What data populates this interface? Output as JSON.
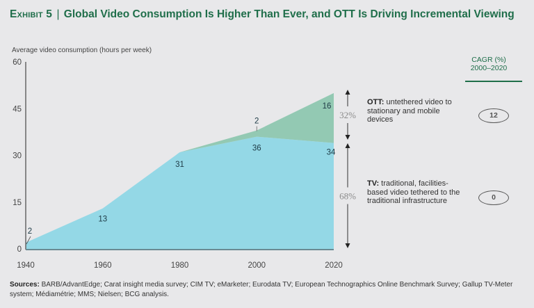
{
  "title": {
    "exhibit": "Exhibit 5",
    "separator": "|",
    "text": "Global Video Consumption Is Higher Than Ever, and OTT Is Driving Incremental Viewing"
  },
  "cagr_header": {
    "line1": "CAGR (%)",
    "line2": "2000–2020"
  },
  "legend": {
    "ott": {
      "label": "OTT:",
      "text": " untethered video to stationary and mobile devices",
      "share": "32%",
      "cagr": "12"
    },
    "tv": {
      "label": "TV:",
      "text": " traditional, facilities-based video tethered to the traditional infrastructure",
      "share": "68%",
      "cagr": "0"
    }
  },
  "sources": {
    "label": "Sources:",
    "text": " BARB/AdvantEdge; Carat insight media survey; CIM TV; eMarketer; Eurodata TV; European Technographics Online Benchmark Survey; Gallup TV-Meter system; Médiamétrie; MMS; Nielsen; BCG analysis."
  },
  "colors": {
    "tv": "#94d8e6",
    "ott": "#93c9b3",
    "title": "#1f6e4a",
    "axis": "#666666"
  },
  "chart_data": {
    "type": "area",
    "stacked": true,
    "title": "Global Video Consumption Is Higher Than Ever, and OTT Is Driving Incremental Viewing",
    "xlabel": "",
    "ylabel": "Average video consumption (hours per week)",
    "x": [
      1940,
      1960,
      1980,
      2000,
      2020
    ],
    "xticks": [
      "1940",
      "1960",
      "1980",
      "2000",
      "2020"
    ],
    "yticks": [
      "0",
      "15",
      "30",
      "45",
      "60"
    ],
    "ylim": [
      0,
      60
    ],
    "xlim": [
      1940,
      2020
    ],
    "grid": false,
    "series": [
      {
        "name": "TV",
        "values": [
          2,
          13,
          31,
          36,
          34
        ],
        "labels": [
          "2",
          "13",
          "31",
          "36",
          "34"
        ]
      },
      {
        "name": "OTT",
        "values": [
          0,
          0,
          0,
          2,
          16
        ],
        "labels": [
          "",
          "",
          "",
          "2",
          "16"
        ]
      }
    ],
    "annotations": [
      {
        "text": "32%",
        "target": "OTT share 2020"
      },
      {
        "text": "68%",
        "target": "TV share 2020"
      }
    ],
    "cagr_2000_2020": {
      "OTT": 12,
      "TV": 0
    }
  }
}
